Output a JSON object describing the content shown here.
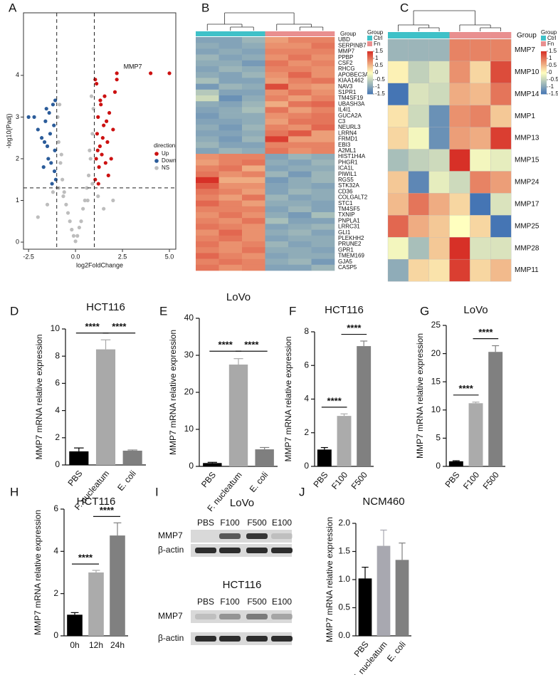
{
  "chart_data": [
    {
      "type": "scatter",
      "panel": "A",
      "xlabel": "log2FoldChange",
      "ylabel": "-log10(Padj)",
      "xlim": [
        -2.77,
        5.34
      ],
      "ylim": [
        -0.17,
        5.5
      ],
      "xticks": [
        -2.5,
        {
          "value": 0,
          "label": "0.0"
        },
        2.5,
        {
          "value": 5,
          "label": "5.0"
        }
      ],
      "yticks": [
        0,
        1,
        2,
        3,
        4
      ],
      "thresholds": {
        "x": [
          -1,
          1
        ],
        "y": 1.3
      },
      "legend_title": "direction",
      "legend": "right",
      "annotation": {
        "text": "MMP7",
        "x": 3.05,
        "y": 4.2
      },
      "series": [
        {
          "name": "Up",
          "color": "#cc1111",
          "x": [
            1.05,
            1.1,
            1.15,
            1.2,
            1.25,
            1.3,
            1.35,
            1.4,
            1.5,
            1.55,
            1.6,
            1.7,
            1.8,
            1.9,
            2.0,
            2.1,
            2.2,
            1.12,
            1.22,
            1.32,
            1.45,
            1.65,
            1.75,
            1.05,
            1.18,
            2.2,
            4.0,
            5.0
          ],
          "values": [
            1.5,
            2.0,
            2.6,
            3.0,
            1.8,
            2.3,
            3.3,
            2.1,
            2.8,
            3.5,
            1.9,
            2.4,
            3.1,
            2.0,
            2.7,
            3.6,
            3.9,
            3.8,
            1.4,
            3.4,
            2.5,
            2.9,
            1.6,
            3.9,
            2.2,
            4.05,
            4.05,
            4.05
          ]
        },
        {
          "name": "Down",
          "color": "#2b5c9a",
          "x": [
            -1.05,
            -1.1,
            -1.15,
            -1.2,
            -1.3,
            -1.35,
            -1.4,
            -1.5,
            -1.6,
            -1.7,
            -1.8,
            -2.0,
            -2.2,
            -2.5,
            -1.08,
            -1.25,
            -1.45,
            -1.55,
            -1.12,
            -1.65
          ],
          "values": [
            1.5,
            2.2,
            2.8,
            3.3,
            1.9,
            2.6,
            3.1,
            2.3,
            2.9,
            1.8,
            2.5,
            2.7,
            3.0,
            3.0,
            3.4,
            1.4,
            2.0,
            3.2,
            1.7,
            2.4
          ]
        },
        {
          "name": "NS",
          "color": "#bdbdbd",
          "x": [
            0,
            0.1,
            -0.1,
            0.2,
            -0.2,
            0.3,
            -0.3,
            0.4,
            -0.4,
            0.5,
            -0.5,
            0.6,
            -0.6,
            0.7,
            -0.7,
            0.8,
            -0.8,
            0.9,
            -0.9,
            0.95,
            -0.95,
            0.85,
            -0.85,
            0.75,
            -0.75,
            1.5,
            2.0,
            -1.5,
            -2.0,
            1.2,
            -1.2,
            0.65,
            -0.65,
            0.9,
            -0.9
          ],
          "values": [
            0.02,
            0.15,
            0.15,
            0.35,
            0.3,
            0.5,
            0.5,
            0.8,
            0.7,
            1.0,
            0.9,
            1.3,
            1.2,
            1.6,
            1.5,
            2.0,
            1.9,
            2.6,
            2.4,
            3.2,
            3.0,
            3.5,
            3.3,
            2.2,
            2.1,
            0.8,
            1.0,
            0.9,
            0.6,
            1.1,
            1.2,
            1.0,
            1.1,
            1.4,
            1.3
          ]
        }
      ]
    },
    {
      "type": "heatmap",
      "panel": "B",
      "group_label": "Group",
      "legend_title": "Group",
      "groups": [
        {
          "name": "Ctrl",
          "color": "#3fc1c8"
        },
        {
          "name": "Fn",
          "color": "#e98f8f"
        }
      ],
      "sample_groups": [
        "Ctrl",
        "Ctrl",
        "Ctrl",
        "Fn",
        "Fn",
        "Fn"
      ],
      "colorscale": {
        "colors": [
          "#4575b4",
          "#ffffbf",
          "#d73027"
        ],
        "lim": [
          -1.5,
          1.5
        ],
        "ticks": [
          1.5,
          1,
          0.5,
          0,
          -0.5,
          -1,
          -1.5
        ]
      },
      "rows": [
        "UBD",
        "SERPINB7",
        "MMP7",
        "PPBP",
        "CSF2",
        "RHCG",
        "APOBEC3A",
        "KIAA1462",
        "NAV3",
        "S1PR1",
        "TM4SF19",
        "UBASH3A",
        "IL4I1",
        "GUCA2A",
        "C3",
        "NEURL3",
        "LRRN4",
        "FRMD1",
        "EBI3",
        "A2ML1",
        "HIST1H4A",
        "PHGR1",
        "ICA1L",
        "PIWIL1",
        "RGS5",
        "STK32A",
        "CD36",
        "COLGALT2",
        "STC1",
        "TM4SF5",
        "TXNIP",
        "PNPLA1",
        "LRRC31",
        "GLI1",
        "PLEKHH2",
        "PRUNE2",
        "GPR1",
        "TMEM169",
        "GJA5",
        "CASP5"
      ],
      "values": [
        [
          -1.0,
          -1.0,
          -0.8,
          0.7,
          0.9,
          0.9
        ],
        [
          -0.9,
          -1.0,
          -0.9,
          0.8,
          0.8,
          1.0
        ],
        [
          -1.0,
          -0.9,
          -1.0,
          0.9,
          0.9,
          0.9
        ],
        [
          -0.8,
          -1.0,
          -0.9,
          0.8,
          1.0,
          0.8
        ],
        [
          -0.9,
          -0.9,
          -1.1,
          1.0,
          0.8,
          0.9
        ],
        [
          -1.0,
          -0.8,
          -0.9,
          0.9,
          0.9,
          0.8
        ],
        [
          -0.9,
          -1.0,
          -0.8,
          0.8,
          1.1,
          0.8
        ],
        [
          -0.7,
          -1.0,
          -1.0,
          0.7,
          0.9,
          1.0
        ],
        [
          -1.1,
          -0.8,
          -0.9,
          1.3,
          0.8,
          0.7
        ],
        [
          -0.6,
          -1.0,
          -1.0,
          0.8,
          1.0,
          0.8
        ],
        [
          -0.4,
          -1.2,
          -0.9,
          0.9,
          0.7,
          0.9
        ],
        [
          -0.9,
          -1.0,
          -0.8,
          0.6,
          1.0,
          1.1
        ],
        [
          -1.0,
          -0.9,
          -0.7,
          1.0,
          0.7,
          0.9
        ],
        [
          -1.1,
          -0.9,
          -0.9,
          0.8,
          0.9,
          1.0
        ],
        [
          -1.0,
          -1.0,
          -0.9,
          0.7,
          1.0,
          1.0
        ],
        [
          -0.9,
          -1.1,
          -0.8,
          0.9,
          0.8,
          1.1
        ],
        [
          -1.0,
          -1.0,
          -0.9,
          1.0,
          1.2,
          0.7
        ],
        [
          -0.9,
          -1.1,
          -0.8,
          1.4,
          0.7,
          0.7
        ],
        [
          -0.8,
          -1.0,
          -1.0,
          0.9,
          0.9,
          0.9
        ],
        [
          -1.0,
          -0.8,
          -0.9,
          1.0,
          0.8,
          0.9
        ],
        [
          0.8,
          0.9,
          0.9,
          -1.0,
          -0.8,
          -0.9
        ],
        [
          0.7,
          0.9,
          1.0,
          -0.9,
          -1.0,
          -0.8
        ],
        [
          0.9,
          1.0,
          0.6,
          -1.0,
          -0.9,
          -0.9
        ],
        [
          1.0,
          0.8,
          0.9,
          -0.8,
          -1.1,
          -0.8
        ],
        [
          1.6,
          0.6,
          0.6,
          -1.1,
          -0.9,
          -0.8
        ],
        [
          1.2,
          0.8,
          0.8,
          -1.0,
          -0.9,
          -1.0
        ],
        [
          1.0,
          0.9,
          0.7,
          -1.0,
          -0.8,
          -0.9
        ],
        [
          0.9,
          0.7,
          1.0,
          -0.8,
          -1.0,
          -0.9
        ],
        [
          1.1,
          0.9,
          0.7,
          -0.9,
          -0.9,
          -1.0
        ],
        [
          0.9,
          0.9,
          0.9,
          -1.0,
          -0.8,
          -1.0
        ],
        [
          0.8,
          1.0,
          0.8,
          -0.9,
          -1.1,
          -0.7
        ],
        [
          0.9,
          0.8,
          1.0,
          -0.7,
          -1.0,
          -1.0
        ],
        [
          1.0,
          0.9,
          0.8,
          -1.0,
          -0.9,
          -0.8
        ],
        [
          0.8,
          1.1,
          0.8,
          -0.9,
          -0.8,
          -1.0
        ],
        [
          0.9,
          1.0,
          0.8,
          -1.0,
          -0.9,
          -0.9
        ],
        [
          1.0,
          0.8,
          0.9,
          -0.8,
          -1.0,
          -0.9
        ],
        [
          0.9,
          0.8,
          1.0,
          -0.9,
          -0.9,
          -1.0
        ],
        [
          1.1,
          0.9,
          0.8,
          -1.0,
          -0.9,
          -0.9
        ],
        [
          0.9,
          1.0,
          0.9,
          -0.9,
          -0.8,
          -1.1
        ],
        [
          1.0,
          0.8,
          0.9,
          -1.0,
          -1.0,
          -0.8
        ]
      ]
    },
    {
      "type": "heatmap",
      "panel": "C",
      "group_label": "Group",
      "legend_title": "Group",
      "groups": [
        {
          "name": "Ctrl",
          "color": "#3fc1c8"
        },
        {
          "name": "Fn",
          "color": "#e98f8f"
        }
      ],
      "sample_groups": [
        "Ctrl",
        "Ctrl",
        "Ctrl",
        "Fn",
        "Fn",
        "Fn"
      ],
      "colorscale": {
        "colors": [
          "#4575b4",
          "#ffffbf",
          "#d73027"
        ],
        "lim": [
          -1.5,
          1.5
        ],
        "ticks": [
          1.5,
          1,
          0.5,
          0,
          -0.5,
          -1,
          -1.5
        ]
      },
      "rows": [
        "MMP7",
        "MMP10",
        "MMP14",
        "MMP1",
        "MMP13",
        "MMP15",
        "MMP24",
        "MMP17",
        "MMP25",
        "MMP28",
        "MMP11"
      ],
      "values": [
        [
          -0.8,
          -0.8,
          -0.8,
          0.9,
          0.9,
          0.9
        ],
        [
          0.1,
          -0.5,
          -0.3,
          0.8,
          0.3,
          1.3
        ],
        [
          -1.5,
          -0.3,
          -0.4,
          0.6,
          0.5,
          1.0
        ],
        [
          0.2,
          -0.4,
          -1.2,
          0.8,
          0.9,
          0.4
        ],
        [
          0.3,
          -0.1,
          -1.2,
          0.7,
          0.6,
          1.4
        ],
        [
          -0.7,
          -0.5,
          -0.4,
          1.6,
          -0.1,
          -0.2
        ],
        [
          0.4,
          -1.3,
          -0.2,
          -0.4,
          0.9,
          0.7
        ],
        [
          0.5,
          1.0,
          0.6,
          0.3,
          -1.5,
          -0.3
        ],
        [
          1.1,
          0.6,
          0.4,
          0.0,
          0.3,
          -1.5
        ],
        [
          -0.1,
          -0.7,
          0.4,
          1.6,
          -0.3,
          -0.3
        ],
        [
          -0.9,
          0.3,
          0.2,
          1.4,
          0.3,
          0.5
        ]
      ]
    },
    {
      "type": "bar",
      "panel": "D",
      "title": "HCT116",
      "ylabel": "MMP7 mRNA relative expression",
      "categories": [
        "PBS",
        "F. nucleatum",
        "E. coli"
      ],
      "values": [
        1.0,
        8.5,
        1.05
      ],
      "errors": [
        0.25,
        0.7,
        0.05
      ],
      "colors": [
        "#000000",
        "#a9a9a9",
        "#7f7f7f"
      ],
      "ylim": [
        0,
        10
      ],
      "yticks": [
        0,
        2,
        4,
        6,
        8,
        10
      ],
      "significance": [
        {
          "label": "****",
          "between": [
            "PBS",
            "F. nucleatum"
          ]
        },
        {
          "label": "****",
          "between": [
            "F. nucleatum",
            "E. coli"
          ]
        }
      ]
    },
    {
      "type": "bar",
      "panel": "E",
      "title": "LoVo",
      "ylabel": "MMP7 mRNA relative expression",
      "categories": [
        "PBS",
        "F. nucleatum",
        "E. coli"
      ],
      "values": [
        0.9,
        27.5,
        4.6
      ],
      "errors": [
        0.2,
        1.6,
        0.5
      ],
      "colors": [
        "#000000",
        "#a9a9a9",
        "#7f7f7f"
      ],
      "ylim": [
        0,
        40
      ],
      "yticks": [
        0,
        10,
        20,
        30,
        40
      ],
      "significance": [
        {
          "label": "****",
          "between": [
            "PBS",
            "F. nucleatum"
          ]
        },
        {
          "label": "****",
          "between": [
            "F. nucleatum",
            "E. coli"
          ]
        }
      ]
    },
    {
      "type": "bar",
      "panel": "F",
      "title": "HCT116",
      "ylabel": "MMP7 mRNA relative expression",
      "categories": [
        "PBS",
        "F100",
        "F500"
      ],
      "values": [
        1.0,
        3.0,
        7.15
      ],
      "errors": [
        0.12,
        0.12,
        0.3
      ],
      "colors": [
        "#000000",
        "#ababab",
        "#808080"
      ],
      "ylim": [
        0,
        8
      ],
      "yticks": [
        0,
        2,
        4,
        6,
        8
      ],
      "significance": [
        {
          "label": "****",
          "between": [
            "PBS",
            "F100"
          ]
        },
        {
          "label": "****",
          "between": [
            "F100",
            "F500"
          ]
        }
      ]
    },
    {
      "type": "bar",
      "panel": "G",
      "title": "LoVo",
      "ylabel": "MMP7 mRNA relative expression",
      "categories": [
        "PBS",
        "F100",
        "F500"
      ],
      "values": [
        0.9,
        11.2,
        20.3
      ],
      "errors": [
        0.1,
        0.2,
        1.1
      ],
      "colors": [
        "#000000",
        "#ababab",
        "#808080"
      ],
      "ylim": [
        0,
        25
      ],
      "yticks": [
        0,
        5,
        10,
        15,
        20,
        25
      ],
      "significance": [
        {
          "label": "****",
          "between": [
            "PBS",
            "F100"
          ]
        },
        {
          "label": "****",
          "between": [
            "F100",
            "F500"
          ]
        }
      ]
    },
    {
      "type": "bar",
      "panel": "H",
      "title": "HCT116",
      "ylabel": "MMP7 mRNA relative expression",
      "categories": [
        "0h",
        "12h",
        "24h"
      ],
      "values": [
        1.0,
        3.0,
        4.75
      ],
      "errors": [
        0.1,
        0.1,
        0.6
      ],
      "colors": [
        "#000000",
        "#ababab",
        "#808080"
      ],
      "ylim": [
        0,
        6
      ],
      "yticks": [
        0,
        2,
        4,
        6
      ],
      "significance": [
        {
          "label": "****",
          "between": [
            "0h",
            "12h"
          ]
        },
        {
          "label": "****",
          "between": [
            "12h",
            "24h"
          ]
        }
      ]
    },
    {
      "type": "blot",
      "panel": "I",
      "blots": [
        {
          "title": "LoVo",
          "lanes": [
            "PBS",
            "F100",
            "F500",
            "E100"
          ],
          "rows": [
            "MMP7",
            "β-actin"
          ]
        },
        {
          "title": "HCT116",
          "lanes": [
            "PBS",
            "F100",
            "F500",
            "E100"
          ],
          "rows": [
            "MMP7",
            "β-actin"
          ]
        }
      ]
    },
    {
      "type": "bar",
      "panel": "J",
      "title": "NCM460",
      "ylabel": "MMP7 mRNA relative expression",
      "categories": [
        "PBS",
        "F. nucleatum",
        "E. coli"
      ],
      "values": [
        1.02,
        1.6,
        1.35
      ],
      "errors": [
        0.2,
        0.28,
        0.3
      ],
      "colors": [
        "#000000",
        "#a8a8b0",
        "#808080"
      ],
      "ylim": [
        0,
        2
      ],
      "yticks": [
        {
          "value": 0,
          "label": "0.0"
        },
        0.5,
        {
          "value": 1,
          "label": "1.0"
        },
        1.5,
        {
          "value": 2,
          "label": "2.0"
        }
      ],
      "significance": []
    }
  ]
}
